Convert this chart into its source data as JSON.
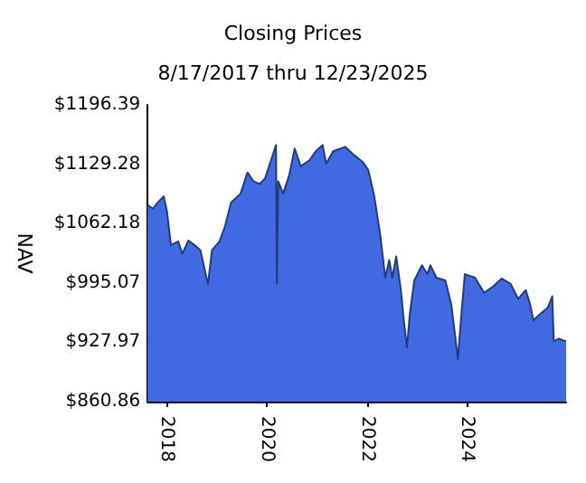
{
  "chart_data": {
    "type": "area",
    "title": "Closing Prices",
    "subtitle": "8/17/2017 thru 12/23/2025",
    "ylabel": "NAV",
    "xlim": [
      "2017-08-17",
      "2025-12-23"
    ],
    "xticks": [
      {
        "value": "2018-01-01",
        "label": "2018"
      },
      {
        "value": "2020-01-01",
        "label": "2020"
      },
      {
        "value": "2022-01-01",
        "label": "2022"
      },
      {
        "value": "2024-01-01",
        "label": "2024"
      }
    ],
    "ylim": [
      860.86,
      1196.39
    ],
    "yticks": [
      {
        "value": 860.86,
        "label": "$860.86"
      },
      {
        "value": 927.97,
        "label": "$927.97"
      },
      {
        "value": 995.07,
        "label": "$995.07"
      },
      {
        "value": 1062.18,
        "label": "$1062.18"
      },
      {
        "value": 1129.28,
        "label": "$1129.28"
      },
      {
        "value": 1196.39,
        "label": "$1196.39"
      }
    ],
    "marker": "none",
    "x": [
      "2017-08-17",
      "2017-09-26",
      "2017-10-30",
      "2017-12-12",
      "2018-01-05",
      "2018-02-03",
      "2018-03-28",
      "2018-04-27",
      "2018-06-10",
      "2018-07-24",
      "2018-09-06",
      "2018-10-20",
      "2018-10-31",
      "2018-11-29",
      "2019-01-23",
      "2019-03-04",
      "2019-04-17",
      "2019-06-25",
      "2019-08-15",
      "2019-09-28",
      "2019-11-11",
      "2019-12-20",
      "2020-02-03",
      "2020-03-10",
      "2020-03-16",
      "2020-03-26",
      "2020-05-01",
      "2020-06-14",
      "2020-07-24",
      "2020-09-06",
      "2020-11-10",
      "2020-12-24",
      "2021-02-13",
      "2021-03-10",
      "2021-04-30",
      "2021-07-27",
      "2021-09-27",
      "2021-12-01",
      "2022-01-11",
      "2022-02-24",
      "2022-04-09",
      "2022-05-15",
      "2022-06-13",
      "2022-07-05",
      "2022-08-03",
      "2022-09-06",
      "2022-09-27",
      "2022-10-20",
      "2022-11-10",
      "2022-12-13",
      "2023-02-06",
      "2023-03-18",
      "2023-04-09",
      "2023-05-23",
      "2023-07-27",
      "2023-09-09",
      "2023-10-08",
      "2023-10-26",
      "2023-11-21",
      "2023-12-16",
      "2024-02-28",
      "2024-05-04",
      "2024-07-09",
      "2024-09-09",
      "2024-11-14",
      "2025-01-08",
      "2025-03-04",
      "2025-04-06",
      "2025-04-28",
      "2025-06-18",
      "2025-08-11",
      "2025-09-13",
      "2025-09-24",
      "2025-10-30",
      "2025-12-23"
    ],
    "series": [
      {
        "color": "#4169e1",
        "values": [
          1083,
          1079,
          1086,
          1093,
          1076,
          1038,
          1042,
          1028,
          1043,
          1038,
          1032,
          1001,
          994,
          1032,
          1042,
          1059,
          1086,
          1096,
          1120,
          1110,
          1107,
          1113,
          1134,
          1151,
          994,
          1110,
          1096,
          1117,
          1147,
          1127,
          1134,
          1144,
          1151,
          1130,
          1144,
          1149,
          1140,
          1132,
          1123,
          1093,
          1049,
          1001,
          1021,
          1001,
          1025,
          987,
          953,
          922,
          960,
          998,
          1015,
          1005,
          1015,
          1001,
          998,
          970,
          933,
          909,
          960,
          1005,
          1001,
          984,
          991,
          1000,
          994,
          977,
          987,
          970,
          953,
          960,
          967,
          980,
          929,
          932,
          929
        ]
      }
    ]
  }
}
